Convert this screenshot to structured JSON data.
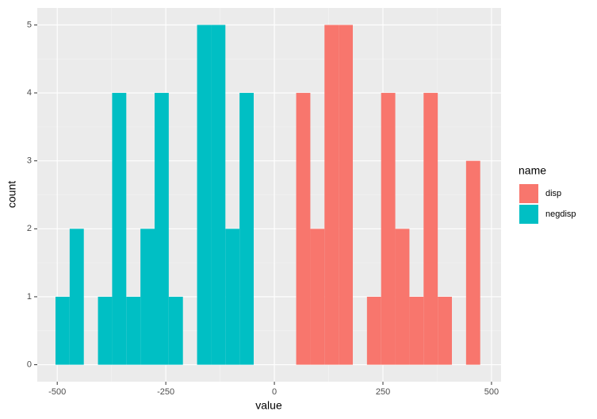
{
  "chart_data": {
    "type": "histogram",
    "x_label": "value",
    "y_label": "count",
    "legend_title": "name",
    "bins": [
      -504,
      -471.4,
      -438.8,
      -406.2,
      -373.6,
      -341,
      -308.4,
      -275.8,
      -243.2,
      -210.6,
      -178,
      -145.4,
      -112.8,
      -80.2,
      -47.6,
      -15,
      17.6,
      50.2,
      82.8,
      115.4,
      148,
      180.6,
      213.2,
      245.8,
      278.4,
      311,
      343.6,
      376.2,
      408.8,
      441.4,
      474
    ],
    "series": [
      {
        "name": "disp",
        "color": "#f8766d",
        "values": [
          0,
          0,
          0,
          0,
          0,
          0,
          0,
          0,
          0,
          0,
          0,
          0,
          0,
          0,
          0,
          0,
          0,
          4,
          2,
          5,
          5,
          0,
          1,
          4,
          2,
          1,
          4,
          1,
          0,
          3
        ]
      },
      {
        "name": "negdisp",
        "color": "#00bfc4",
        "values": [
          1,
          2,
          0,
          1,
          4,
          1,
          2,
          4,
          1,
          0,
          5,
          5,
          2,
          4,
          0,
          0,
          0,
          0,
          0,
          0,
          0,
          0,
          0,
          0,
          0,
          0,
          0,
          0,
          0,
          0
        ]
      }
    ],
    "xlim": [
      -546,
      522
    ],
    "ylim": [
      -0.25,
      5.25
    ],
    "xticks": [
      -500,
      -250,
      0,
      250,
      500
    ],
    "yticks": [
      0,
      1,
      2,
      3,
      4,
      5
    ],
    "grid": true,
    "legend_position": "right"
  }
}
